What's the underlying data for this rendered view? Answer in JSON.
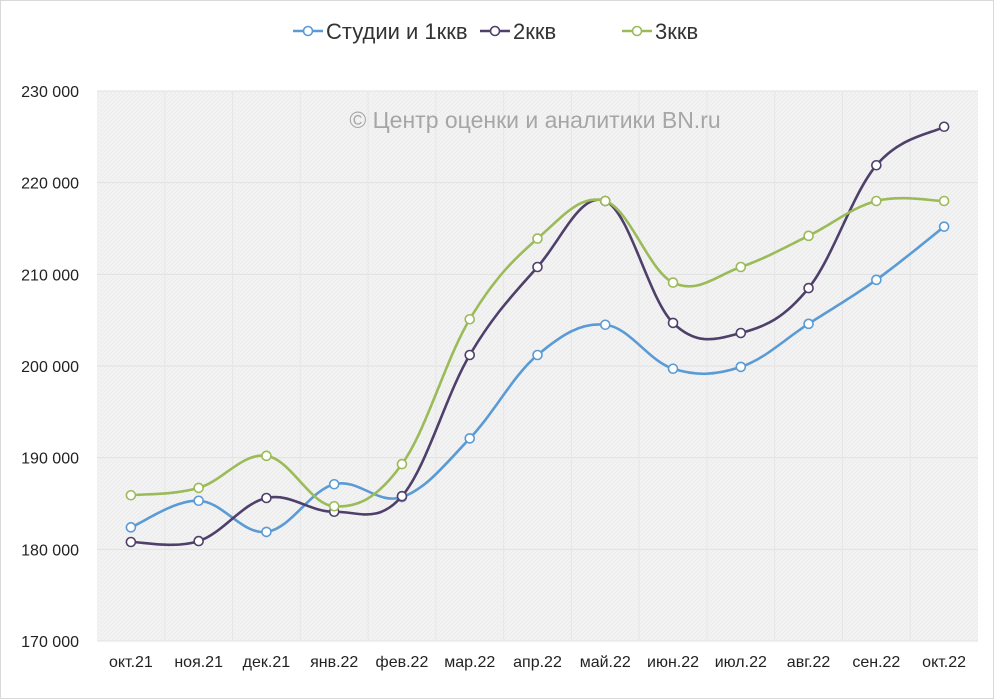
{
  "chart_data": {
    "type": "line",
    "title": "",
    "watermark": "© Центр оценки и аналитики BN.ru",
    "xlabel": "",
    "ylabel": "",
    "categories": [
      "окт.21",
      "ноя.21",
      "дек.21",
      "янв.22",
      "фев.22",
      "мар.22",
      "апр.22",
      "май.22",
      "июн.22",
      "июл.22",
      "авг.22",
      "сен.22",
      "окт.22"
    ],
    "ylim": [
      170000,
      230000
    ],
    "yticks": [
      170000,
      180000,
      190000,
      200000,
      210000,
      220000,
      230000
    ],
    "ytick_labels": [
      "170 000",
      "180 000",
      "190 000",
      "200 000",
      "210 000",
      "220 000",
      "230 000"
    ],
    "grid": true,
    "legend_position": "top",
    "series": [
      {
        "name": "Студии и 1ккв",
        "color": "#5b9bd5",
        "values": [
          182400,
          185300,
          181900,
          187100,
          185700,
          192100,
          201200,
          204500,
          199700,
          199900,
          204600,
          209400,
          215200
        ]
      },
      {
        "name": "2ккв",
        "color": "#4e3f6b",
        "values": [
          180800,
          180900,
          185600,
          184100,
          185800,
          201200,
          210800,
          218000,
          204700,
          203600,
          208500,
          221900,
          226100
        ]
      },
      {
        "name": "3ккв",
        "color": "#9bbb59",
        "values": [
          185900,
          186700,
          190200,
          184700,
          189300,
          205100,
          213900,
          218000,
          209100,
          210800,
          214200,
          218000,
          218000
        ]
      }
    ]
  }
}
